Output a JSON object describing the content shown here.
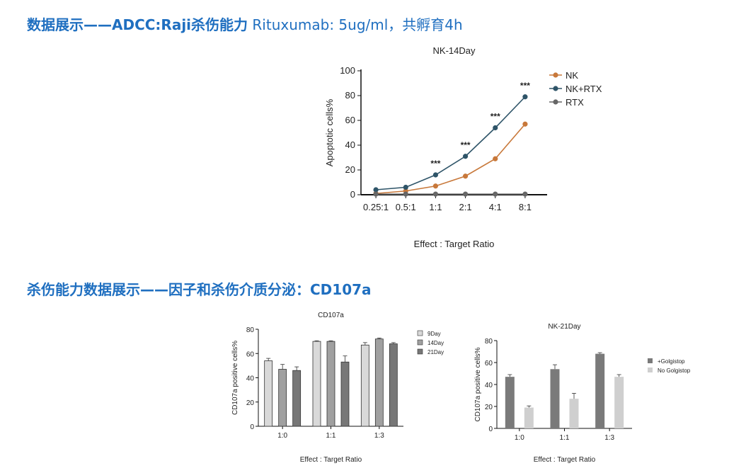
{
  "headings": {
    "h1_bold": "数据展示——ADCC:Raji杀伤能力",
    "h1_rest": " Rituxumab: 5ug/ml，共孵育4h",
    "h2": "杀伤能力数据展示——因子和杀伤介质分泌：CD107a"
  },
  "chart_data": [
    {
      "type": "line",
      "title": "NK-14Day",
      "xlabel": "Effect : Target Ratio",
      "ylabel": "Apoptotic cells%",
      "categories": [
        "0.25:1",
        "0.5:1",
        "1:1",
        "2:1",
        "4:1",
        "8:1"
      ],
      "ylim": [
        0,
        100
      ],
      "yticks": [
        0,
        20,
        40,
        60,
        80,
        100
      ],
      "legend_position": "top-right",
      "annotations": [
        "",
        "",
        "***",
        "***",
        "***",
        "***"
      ],
      "series": [
        {
          "name": "NK",
          "values": [
            1,
            3,
            7,
            15,
            29,
            57
          ],
          "color": "#c8783a"
        },
        {
          "name": "NK+RTX",
          "values": [
            4,
            6,
            16,
            31,
            54,
            79
          ],
          "color": "#2e5468"
        },
        {
          "name": "RTX",
          "values": [
            0.5,
            0.5,
            0.5,
            0.5,
            0.5,
            0.5
          ],
          "color": "#666666"
        }
      ]
    },
    {
      "type": "bar",
      "title": "CD107a",
      "xlabel": "Effect : Target Ratio",
      "ylabel": "CD107a positive cells%",
      "categories": [
        "1:0",
        "1:1",
        "1:3"
      ],
      "ylim": [
        0,
        80
      ],
      "yticks": [
        0,
        20,
        40,
        60,
        80
      ],
      "legend_position": "top-right",
      "series": [
        {
          "name": "9Day",
          "values": [
            54,
            70,
            67
          ],
          "errors": [
            2,
            0.5,
            2
          ],
          "color": "#d9d9d9"
        },
        {
          "name": "14Day",
          "values": [
            47,
            70,
            72
          ],
          "errors": [
            4,
            0.5,
            0.8
          ],
          "color": "#a0a0a0"
        },
        {
          "name": "21Day",
          "values": [
            46,
            53,
            68
          ],
          "errors": [
            3,
            5,
            1
          ],
          "color": "#777777"
        }
      ]
    },
    {
      "type": "bar",
      "title": "NK-21Day",
      "xlabel": "Effect : Target Ratio",
      "ylabel": "CD107a positive cells%",
      "categories": [
        "1:0",
        "1:1",
        "1:3"
      ],
      "ylim": [
        0,
        80
      ],
      "yticks": [
        0,
        20,
        40,
        60,
        80
      ],
      "legend_position": "right",
      "series": [
        {
          "name": "+Golgistop",
          "values": [
            47,
            54,
            68
          ],
          "errors": [
            2,
            4,
            1
          ],
          "color": "#7a7a7a"
        },
        {
          "name": "No Golgistop",
          "values": [
            19,
            27,
            47
          ],
          "errors": [
            1.5,
            5,
            2
          ],
          "color": "#cfcfcf"
        }
      ]
    }
  ]
}
